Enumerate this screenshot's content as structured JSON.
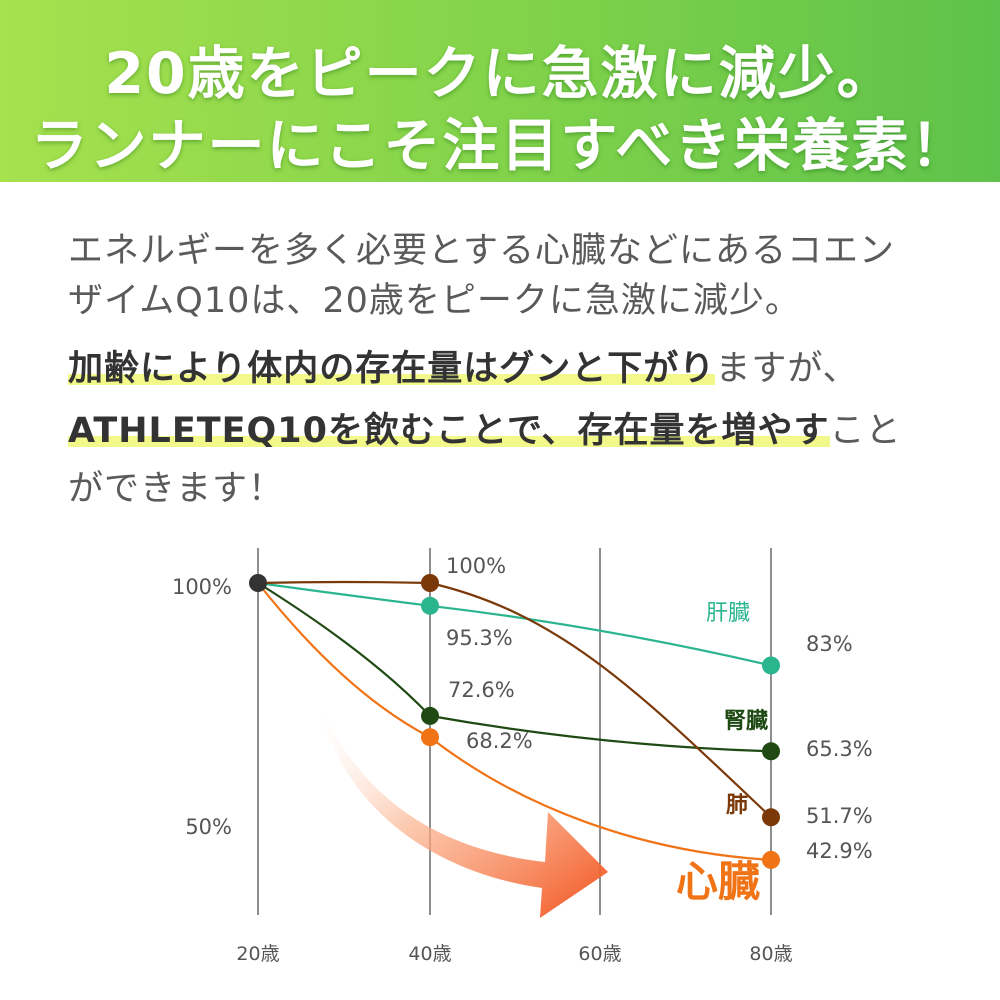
{
  "banner": {
    "line1": "20歳をピークに急激に減少。",
    "line2": "ランナーにこそ注目すべき栄養素！"
  },
  "body_text": {
    "p1": "エネルギーを多く必要とする心臓などにあるコエン",
    "p2": "ザイムQ10は、20歳をピークに急激に減少。",
    "p3_highlight": "加齢により体内の存在量はグンと下がり",
    "p3_rest": "ますが、",
    "p4_highlight": "ATHLETEQ10を飲むことで、存在量を増やす",
    "p4_rest": "こと",
    "p5": "ができます！"
  },
  "chart_data": {
    "type": "line",
    "x": [
      "20歳",
      "40歳",
      "60歳",
      "80歳"
    ],
    "y_ticks": [
      "100%",
      "50%"
    ],
    "ylim": [
      40,
      100
    ],
    "grid": "vertical",
    "series": [
      {
        "name": "肝臓",
        "color": "#2bb58e",
        "values": [
          100,
          95.3,
          null,
          83
        ],
        "labels": [
          "",
          "95.3%",
          "",
          "83%"
        ]
      },
      {
        "name": "腎臓",
        "color": "#1f4a14",
        "values": [
          100,
          72.6,
          null,
          65.3
        ],
        "labels": [
          "",
          "72.6%",
          "",
          "65.3%"
        ]
      },
      {
        "name": "肺",
        "color": "#7b3808",
        "values": [
          100,
          100,
          null,
          51.7
        ],
        "labels": [
          "",
          "100%",
          "",
          "51.7%"
        ]
      },
      {
        "name": "心臓",
        "color": "#f07316",
        "values": [
          100,
          68.2,
          null,
          42.9
        ],
        "labels": [
          "",
          "68.2%",
          "",
          "42.9%"
        ]
      }
    ],
    "start_point_color": "#333333"
  }
}
